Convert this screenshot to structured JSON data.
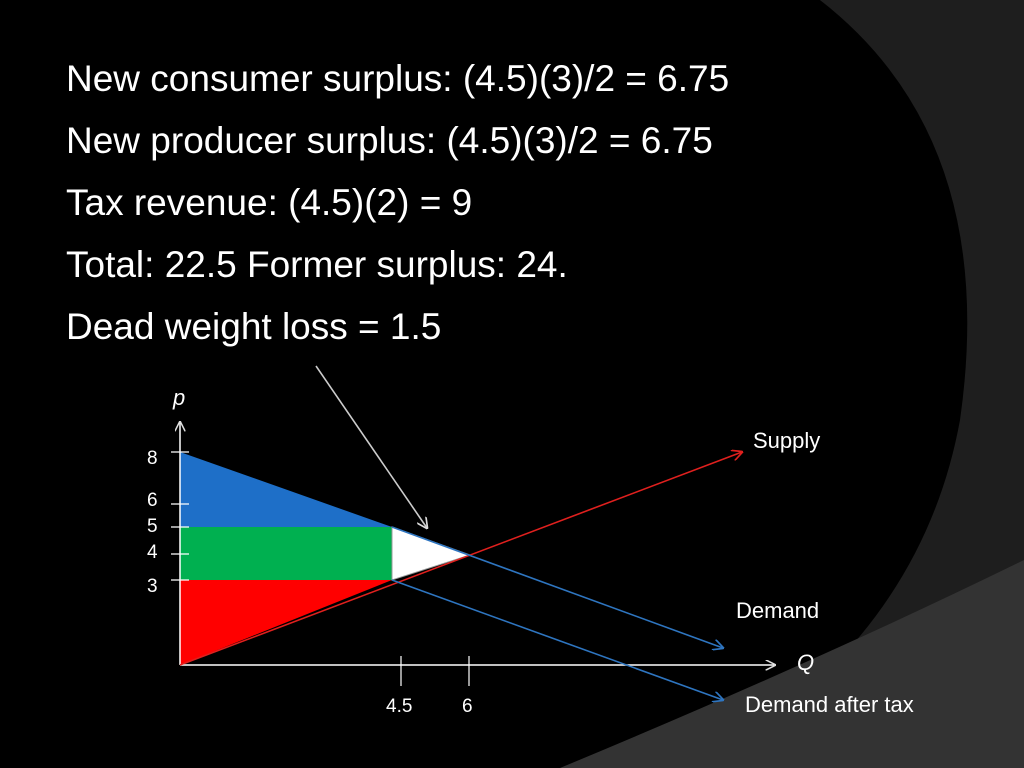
{
  "slide": {
    "lines": [
      "New consumer surplus: (4.5)(3)/2 = 6.75",
      "New producer surplus: (4.5)(3)/2 = 6.75",
      "Tax revenue: (4.5)(2) = 9",
      "Total: 22.5  Former surplus: 24.",
      "Dead weight loss = 1.5"
    ]
  },
  "diagram": {
    "y_axis_label": "p",
    "x_axis_label": "Q",
    "y_ticks": [
      "8",
      "6",
      "5",
      "4",
      "3"
    ],
    "x_ticks": [
      "4.5",
      "6"
    ],
    "curve_labels": {
      "supply": "Supply",
      "demand": "Demand",
      "demand_after_tax": "Demand after tax"
    },
    "colors": {
      "consumer_surplus": "#1e6fc8",
      "tax_revenue": "#00b050",
      "producer_surplus": "#ff0000",
      "deadweight_loss": "#ffffff",
      "supply_line": "#e0201e",
      "demand_line": "#2e75c0"
    }
  }
}
